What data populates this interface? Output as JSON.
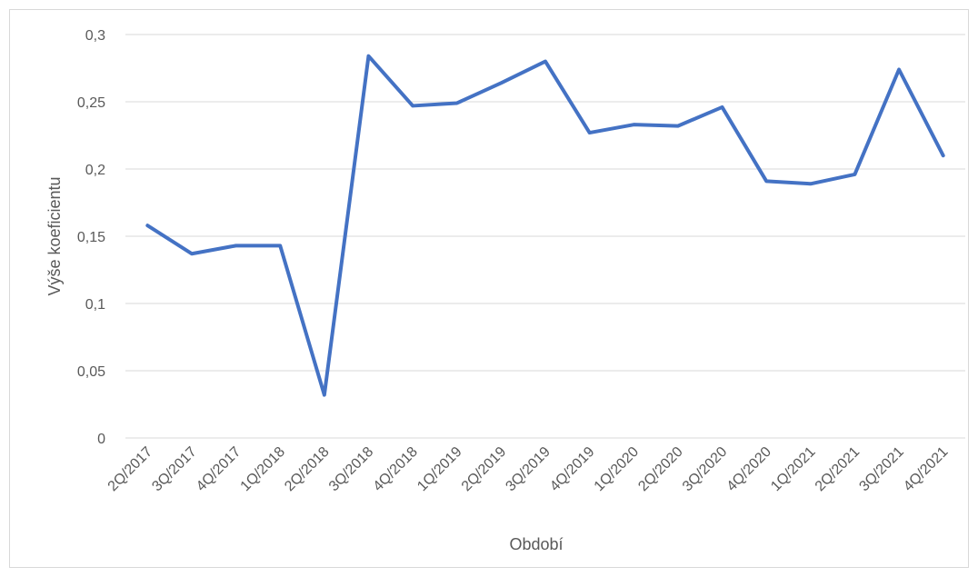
{
  "chart_data": {
    "type": "line",
    "x_label": "Období",
    "y_label": "Výše koeficientu",
    "categories": [
      "2Q/2017",
      "3Q/2017",
      "4Q/2017",
      "1Q/2018",
      "2Q/2018",
      "3Q/2018",
      "4Q/2018",
      "1Q/2019",
      "2Q/2019",
      "3Q/2019",
      "4Q/2019",
      "1Q/2020",
      "2Q/2020",
      "3Q/2020",
      "4Q/2020",
      "1Q/2021",
      "2Q/2021",
      "3Q/2021",
      "4Q/2021"
    ],
    "values": [
      0.158,
      0.137,
      0.143,
      0.143,
      0.032,
      0.284,
      0.247,
      0.249,
      0.264,
      0.28,
      0.227,
      0.233,
      0.232,
      0.246,
      0.191,
      0.189,
      0.196,
      0.274,
      0.21
    ],
    "color": "#4472c4",
    "ylim": [
      0,
      0.3
    ],
    "yticks": [
      0,
      {
        "value": 0.05,
        "label": "0,05"
      },
      {
        "value": 0.1,
        "label": "0,1"
      },
      {
        "value": 0.15,
        "label": "0,15"
      },
      {
        "value": 0.2,
        "label": "0,2"
      },
      {
        "value": 0.25,
        "label": "0,25"
      },
      {
        "value": 0.3,
        "label": "0,3"
      }
    ],
    "grid": true
  }
}
